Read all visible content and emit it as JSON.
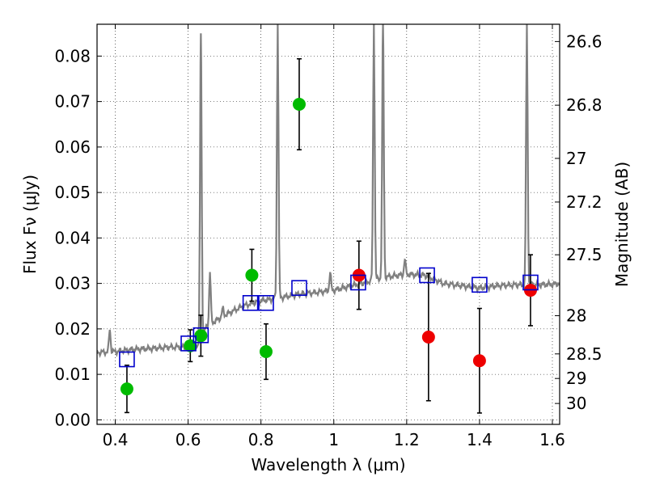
{
  "chart_data": {
    "type": "scatter",
    "xlabel": "Wavelength λ (μm)",
    "ylabel": "Flux Fν (μJy)",
    "ylabel_right": "Magnitude (AB)",
    "xlim": [
      0.35,
      1.62
    ],
    "ylim": [
      -0.001,
      0.087
    ],
    "grid": true,
    "x_ticks": [
      0.4,
      0.6,
      0.8,
      1.0,
      1.2,
      1.4,
      1.6
    ],
    "x_tick_labels": [
      "0.4",
      "0.6",
      "0.8",
      "1",
      "1.2",
      "1.4",
      "1.6"
    ],
    "y_ticks": [
      0.0,
      0.01,
      0.02,
      0.03,
      0.04,
      0.05,
      0.06,
      0.07,
      0.08
    ],
    "y_tick_labels": [
      "0.00",
      "0.01",
      "0.02",
      "0.03",
      "0.04",
      "0.05",
      "0.06",
      "0.07",
      "0.08"
    ],
    "mag_ticks": [
      {
        "label": "26.6",
        "flux": 0.0832
      },
      {
        "label": "26.8",
        "flux": 0.0692
      },
      {
        "label": "27",
        "flux": 0.0575
      },
      {
        "label": "27.2",
        "flux": 0.0479
      },
      {
        "label": "27.5",
        "flux": 0.0363
      },
      {
        "label": "28",
        "flux": 0.0229
      },
      {
        "label": "28.5",
        "flux": 0.0145
      },
      {
        "label": "29",
        "flux": 0.0091
      },
      {
        "label": "30",
        "flux": 0.0036
      }
    ],
    "colors": {
      "spectrum": "#808080",
      "green_points": "#00bb00",
      "red_points": "#ee0000",
      "model_squares": "#0000cc",
      "error_bars": "#000000"
    },
    "spectrum": {
      "continuum": [
        [
          0.35,
          0.0148
        ],
        [
          0.4,
          0.015
        ],
        [
          0.45,
          0.0155
        ],
        [
          0.5,
          0.0157
        ],
        [
          0.55,
          0.016
        ],
        [
          0.6,
          0.016
        ],
        [
          0.625,
          0.0163
        ],
        [
          0.635,
          0.017
        ],
        [
          0.65,
          0.0205
        ],
        [
          0.7,
          0.023
        ],
        [
          0.75,
          0.025
        ],
        [
          0.8,
          0.0262
        ],
        [
          0.85,
          0.0268
        ],
        [
          0.9,
          0.0276
        ],
        [
          0.95,
          0.028
        ],
        [
          1.0,
          0.0285
        ],
        [
          1.05,
          0.0295
        ],
        [
          1.1,
          0.0305
        ],
        [
          1.15,
          0.0315
        ],
        [
          1.2,
          0.032
        ],
        [
          1.25,
          0.0318
        ],
        [
          1.3,
          0.03
        ],
        [
          1.35,
          0.0295
        ],
        [
          1.4,
          0.029
        ],
        [
          1.45,
          0.0295
        ],
        [
          1.5,
          0.0297
        ],
        [
          1.55,
          0.0297
        ],
        [
          1.6,
          0.0298
        ],
        [
          1.62,
          0.03
        ]
      ],
      "lines": [
        {
          "x": 0.385,
          "peak": 0.0198
        },
        {
          "x": 0.635,
          "peak": 0.085
        },
        {
          "x": 0.66,
          "peak": 0.0325
        },
        {
          "x": 0.695,
          "peak": 0.0245
        },
        {
          "x": 0.846,
          "peak": 0.087
        },
        {
          "x": 0.99,
          "peak": 0.0325
        },
        {
          "x": 1.11,
          "peak": 0.087
        },
        {
          "x": 1.135,
          "peak": 0.087
        },
        {
          "x": 1.195,
          "peak": 0.0352
        },
        {
          "x": 1.53,
          "peak": 0.087
        }
      ]
    },
    "series": [
      {
        "marker": "circle",
        "color": "green",
        "points": [
          {
            "x": 0.432,
            "y": 0.0068,
            "err": 0.0052
          },
          {
            "x": 0.606,
            "y": 0.0163,
            "err": 0.0035
          },
          {
            "x": 0.635,
            "y": 0.0185,
            "err": 0.0045
          },
          {
            "x": 0.775,
            "y": 0.0318,
            "err": 0.0057
          },
          {
            "x": 0.814,
            "y": 0.015,
            "err": 0.0061
          },
          {
            "x": 0.905,
            "y": 0.0694,
            "err": 0.01
          }
        ]
      },
      {
        "marker": "circle",
        "color": "red",
        "points": [
          {
            "x": 1.069,
            "y": 0.0318,
            "err": 0.0075
          },
          {
            "x": 1.26,
            "y": 0.0182,
            "err": 0.014
          },
          {
            "x": 1.4,
            "y": 0.013,
            "err": 0.0115
          },
          {
            "x": 1.54,
            "y": 0.0285,
            "err": 0.0078
          }
        ]
      },
      {
        "marker": "square",
        "color": "blue",
        "points": [
          {
            "x": 0.432,
            "y": 0.0133
          },
          {
            "x": 0.601,
            "y": 0.0168
          },
          {
            "x": 0.635,
            "y": 0.0186
          },
          {
            "x": 0.771,
            "y": 0.0257
          },
          {
            "x": 0.814,
            "y": 0.0257
          },
          {
            "x": 0.905,
            "y": 0.029
          },
          {
            "x": 1.067,
            "y": 0.0302
          },
          {
            "x": 1.256,
            "y": 0.0318
          },
          {
            "x": 1.4,
            "y": 0.0297
          },
          {
            "x": 1.54,
            "y": 0.0302
          }
        ]
      }
    ]
  }
}
